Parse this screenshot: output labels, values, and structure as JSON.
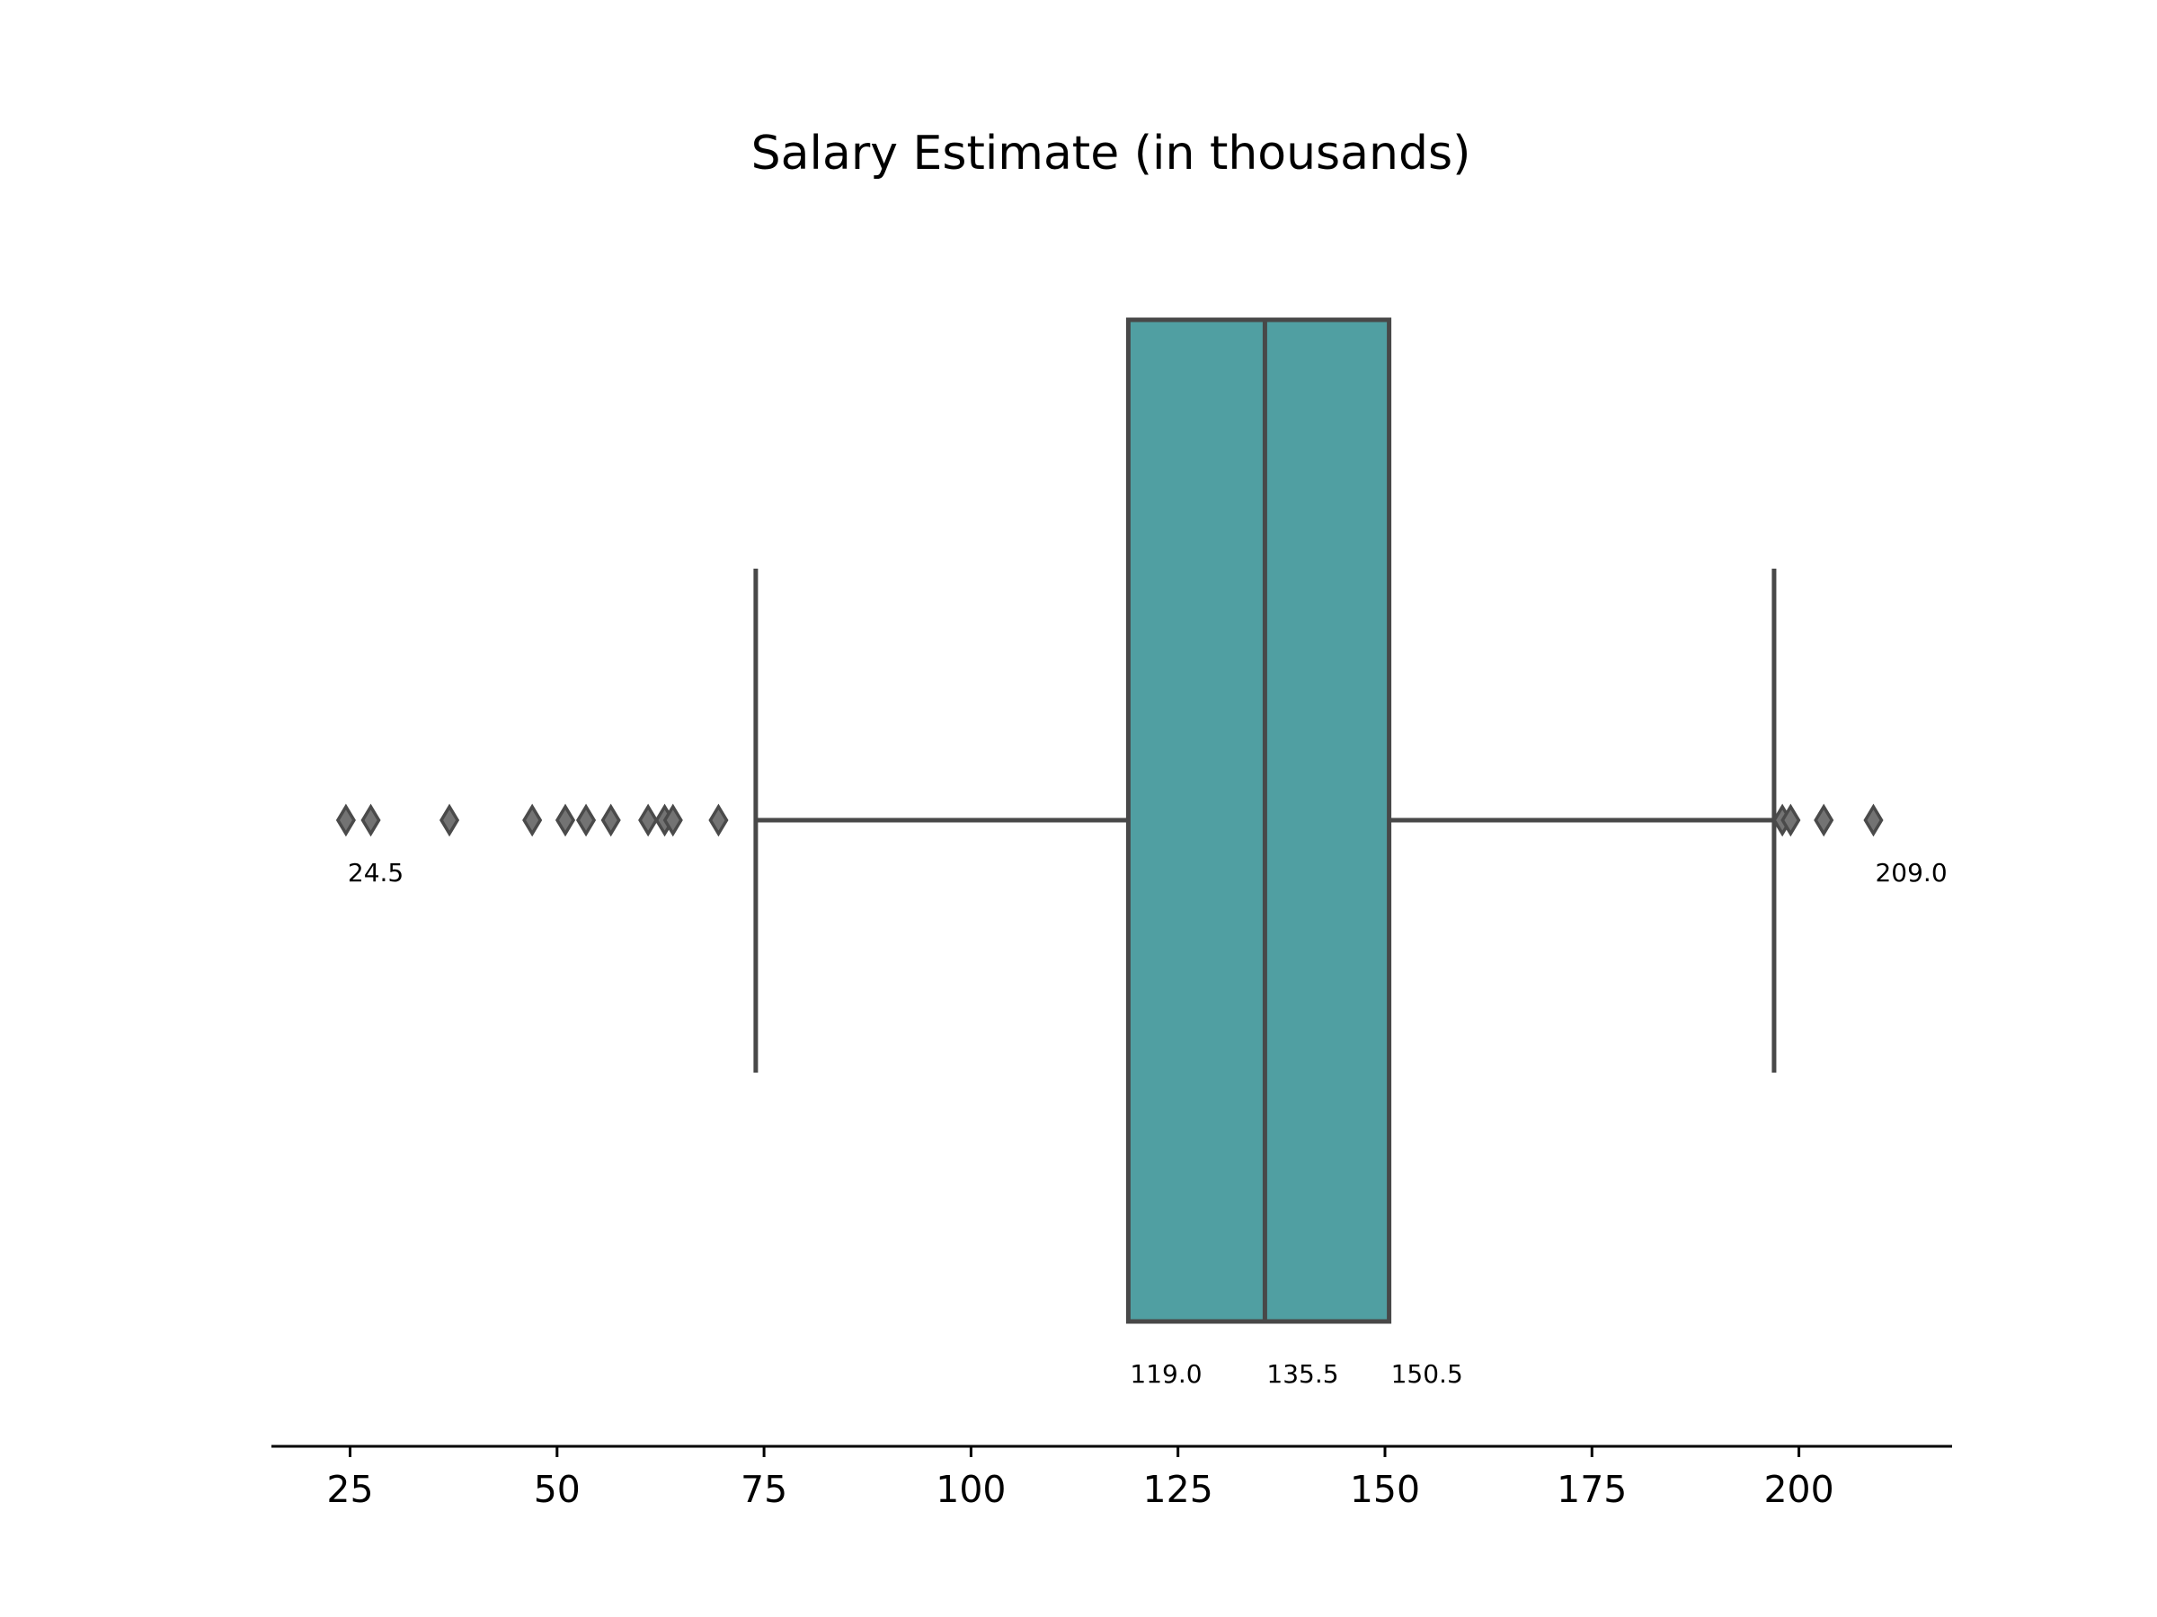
{
  "chart_data": {
    "type": "box",
    "title": "Salary Estimate (in thousands)",
    "orientation": "horizontal",
    "xlim": [
      15.5,
      218.5
    ],
    "x_ticks": [
      25,
      50,
      75,
      100,
      125,
      150,
      175,
      200
    ],
    "x_tick_labels": [
      "25",
      "50",
      "75",
      "100",
      "125",
      "150",
      "175",
      "200"
    ],
    "grid": false,
    "box": {
      "q1": 119.0,
      "median": 135.5,
      "q3": 150.5,
      "whisker_low": 74.0,
      "whisker_high": 197.0,
      "fill_color": "#509fa2",
      "line_color": "#484848"
    },
    "outliers": [
      24.5,
      27.5,
      37,
      47,
      51,
      53.5,
      56.5,
      61,
      63,
      64,
      69.5,
      198,
      199,
      203,
      209.0
    ],
    "annotations": [
      {
        "value": 24.5,
        "text": "24.5"
      },
      {
        "value": 209.0,
        "text": "209.0"
      },
      {
        "value": 119.0,
        "text": "119.0"
      },
      {
        "value": 135.5,
        "text": "135.5"
      },
      {
        "value": 150.5,
        "text": "150.5"
      }
    ]
  }
}
